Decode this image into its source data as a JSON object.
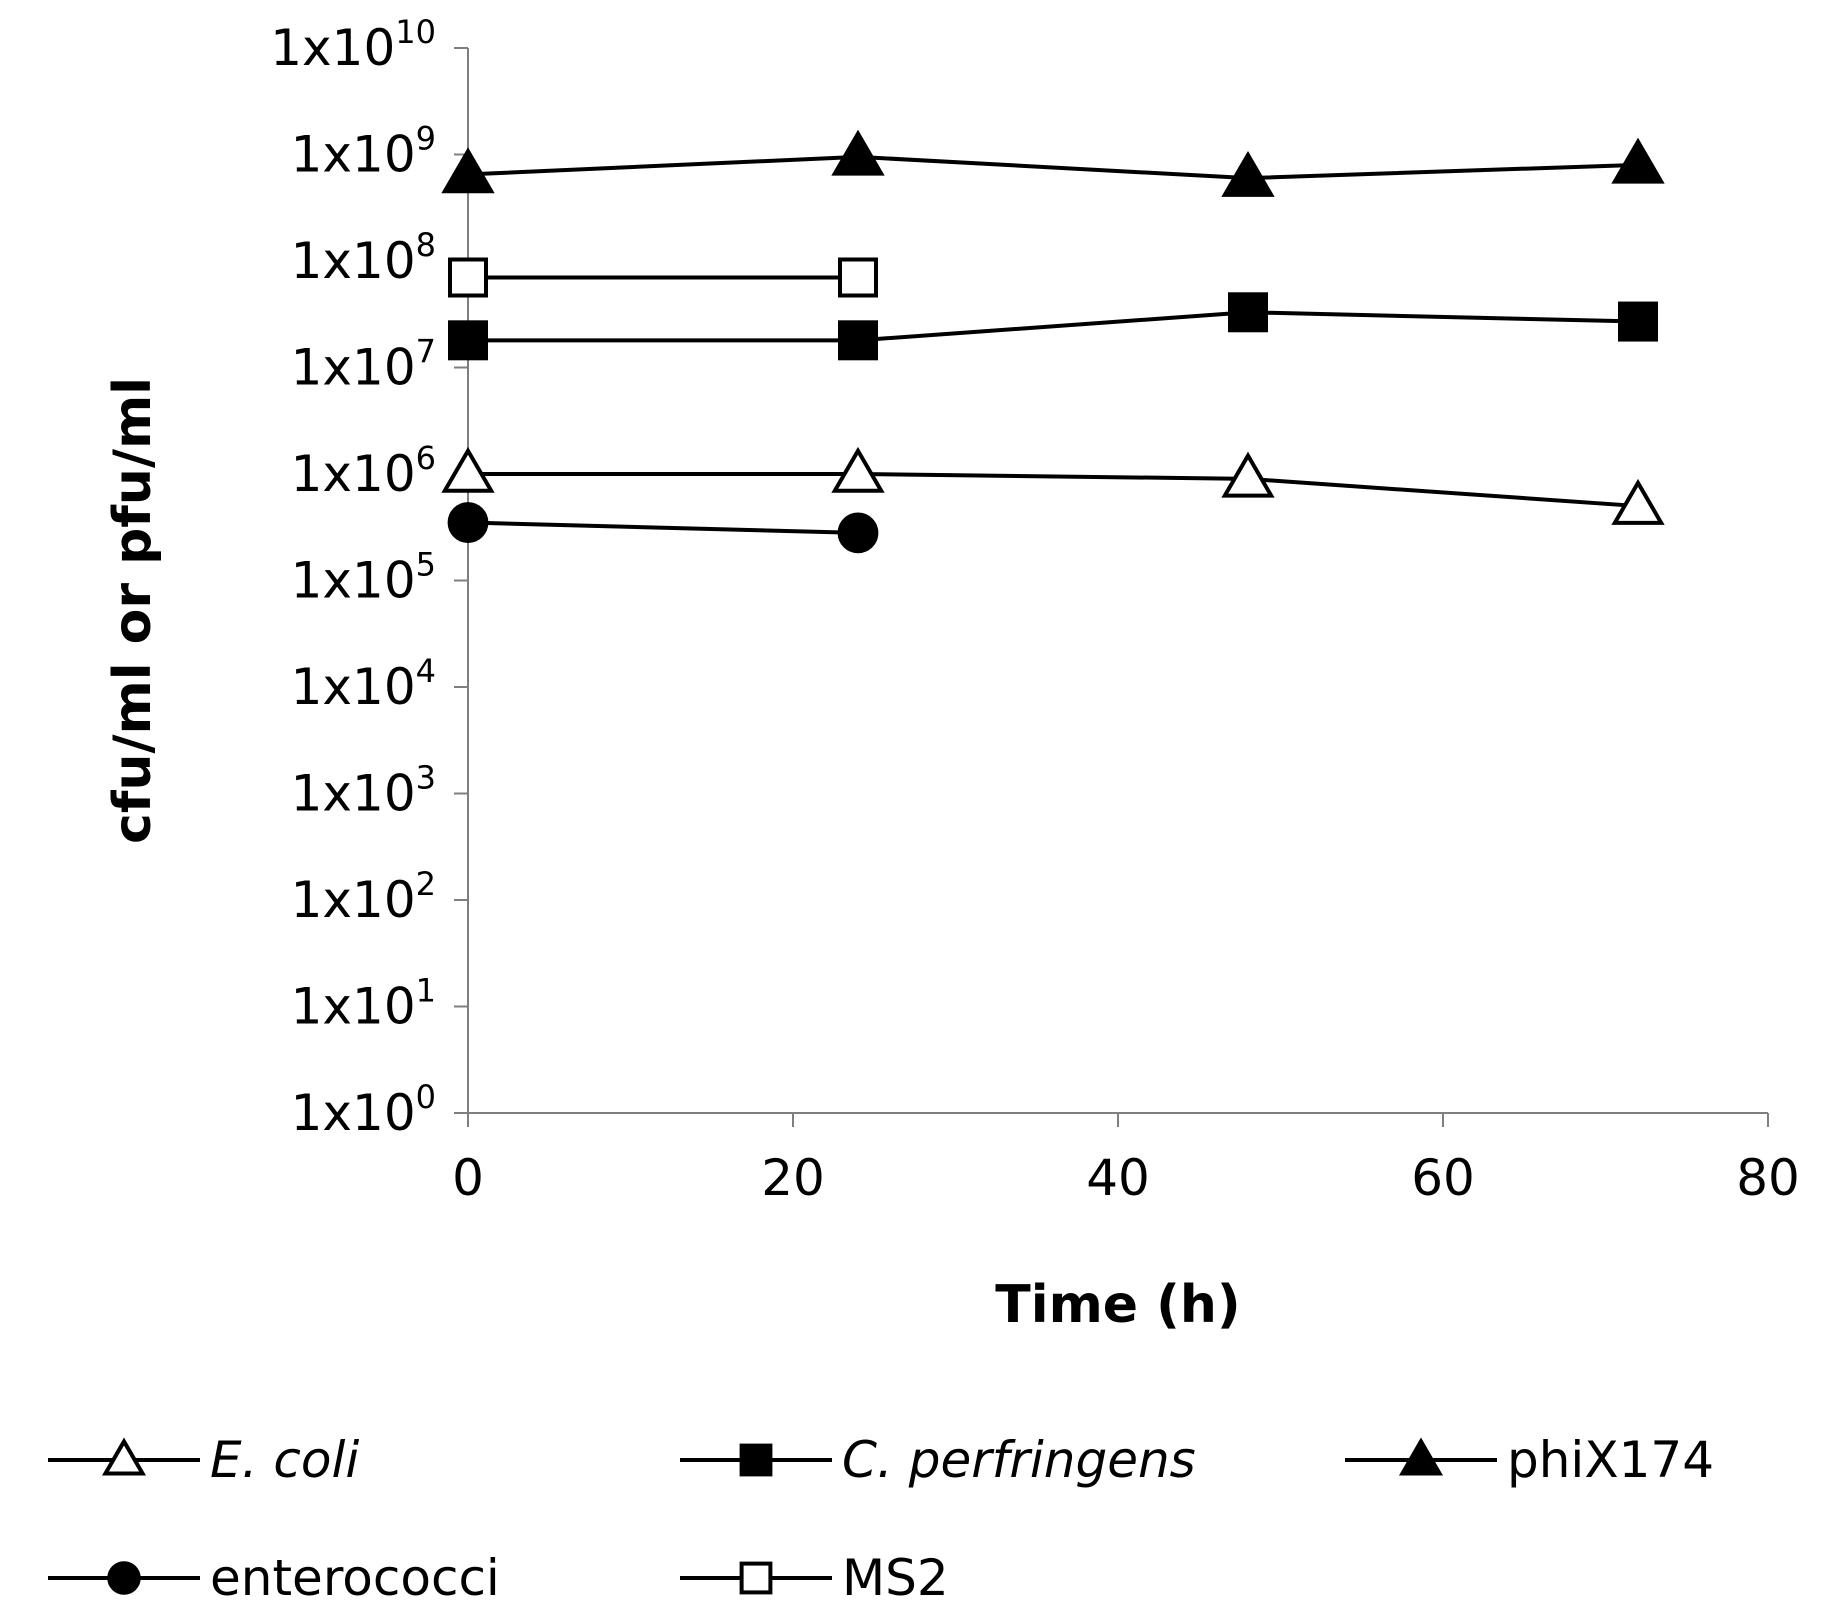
{
  "chart_data": {
    "type": "line",
    "title": "",
    "xlabel": "Time (h)",
    "ylabel": "cfu/ml or pfu/ml",
    "xlim": [
      0,
      80
    ],
    "x_ticks": [
      "0",
      "20",
      "40",
      "60",
      "80"
    ],
    "ylim_log10": [
      0,
      10
    ],
    "y_ticks": [
      {
        "base": "1x10",
        "exp": "0"
      },
      {
        "base": "1x10",
        "exp": "1"
      },
      {
        "base": "1x10",
        "exp": "2"
      },
      {
        "base": "1x10",
        "exp": "3"
      },
      {
        "base": "1x10",
        "exp": "4"
      },
      {
        "base": "1x10",
        "exp": "5"
      },
      {
        "base": "1x10",
        "exp": "6"
      },
      {
        "base": "1x10",
        "exp": "7"
      },
      {
        "base": "1x10",
        "exp": "8"
      },
      {
        "base": "1x10",
        "exp": "9"
      },
      {
        "base": "1x10",
        "exp": "10"
      }
    ],
    "grid": false,
    "legend_position": "bottom",
    "series": [
      {
        "name": "E. coli",
        "italic": true,
        "marker": "triangle-open",
        "x": [
          0,
          24,
          48,
          72
        ],
        "y": [
          1000000,
          1000000,
          900000,
          500000
        ]
      },
      {
        "name": "C. perfringens",
        "italic": true,
        "marker": "square-filled",
        "x": [
          0,
          24,
          48,
          72
        ],
        "y": [
          18000000,
          18000000,
          33000000,
          27000000
        ]
      },
      {
        "name": "phiX174",
        "italic": false,
        "marker": "triangle-filled",
        "x": [
          0,
          24,
          48,
          72
        ],
        "y": [
          650000000,
          950000000,
          600000000,
          800000000
        ]
      },
      {
        "name": "enterococci",
        "italic": false,
        "marker": "circle-filled",
        "x": [
          0,
          24
        ],
        "y": [
          350000,
          280000
        ]
      },
      {
        "name": "MS2",
        "italic": false,
        "marker": "square-open",
        "x": [
          0,
          24
        ],
        "y": [
          70000000,
          70000000
        ]
      }
    ]
  }
}
